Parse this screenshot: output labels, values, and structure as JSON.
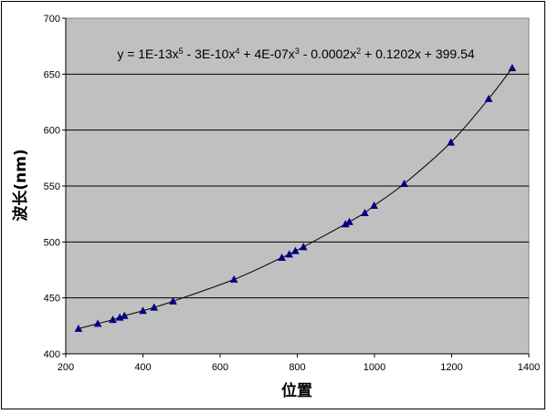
{
  "chart_data": {
    "type": "scatter",
    "xlabel": "位置",
    "ylabel": "波长(nm)",
    "xlim": [
      200,
      1400
    ],
    "ylim": [
      400,
      700
    ],
    "xticks": [
      "200",
      "400",
      "600",
      "800",
      "1000",
      "1200",
      "1400"
    ],
    "yticks": [
      "400",
      "450",
      "500",
      "550",
      "600",
      "650",
      "700"
    ],
    "grid": "horizontal",
    "plot_background": "#c0c0c0",
    "marker_color": "#000080",
    "trendline": {
      "type": "polynomial",
      "order": 5,
      "equation": [
        "y = 1E-13x",
        "5",
        " - 3E-10x",
        "4",
        " + 4E-07x",
        "3",
        " - 0.0002x",
        "2",
        " + 0.1202x + 399.54"
      ],
      "coefficients": [
        399.54,
        0.1202,
        -0.0002,
        4e-07,
        -3e-10,
        1e-13
      ]
    },
    "series": [
      {
        "x": [
          233,
          283,
          322,
          340,
          352,
          400,
          429,
          478,
          636,
          760,
          779,
          795,
          816,
          925,
          935,
          975,
          999,
          1077,
          1198,
          1296,
          1357
        ],
        "y": [
          422.5,
          427,
          430.5,
          432.5,
          434,
          438.5,
          441.5,
          447,
          466.5,
          486,
          489,
          492,
          495.5,
          516,
          518,
          526,
          532.5,
          552,
          589,
          628,
          655.5
        ]
      }
    ]
  }
}
